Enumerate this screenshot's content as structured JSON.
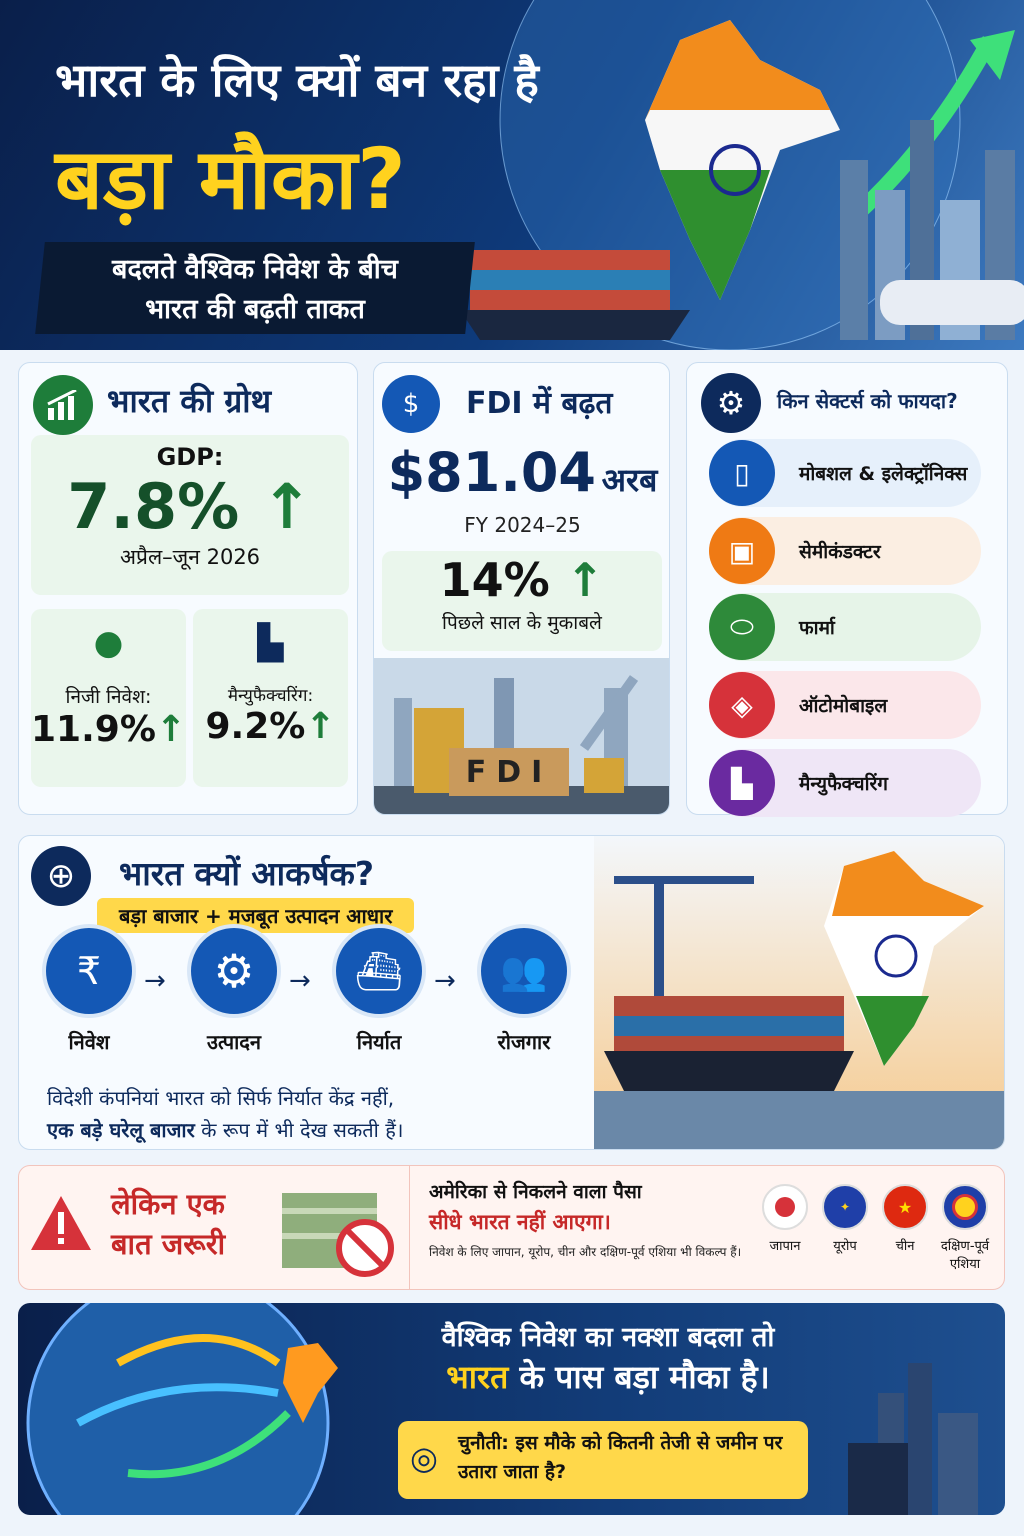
{
  "header": {
    "title_line1": "भारत के लिए क्यों बन रहा है",
    "title_line2": "बड़ा मौका?",
    "subtitle_line1": "बदलते वैश्विक निवेश के बीच",
    "subtitle_line2": "भारत की बढ़ती ताकत"
  },
  "growth": {
    "title": "भारत की ग्रोथ",
    "gdp_label": "GDP:",
    "gdp_value": "7.8%",
    "gdp_period": "अप्रैल–जून 2026",
    "private_label": "निजी निवेश:",
    "private_value": "11.9%",
    "mfg_label": "मैन्युफैक्चरिंग:",
    "mfg_value": "9.2%"
  },
  "fdi": {
    "title": "FDI में बढ़त",
    "amount": "$81.04",
    "unit": "अरब",
    "period": "FY 2024–25",
    "growth": "14%",
    "growth_note": "पिछले साल के मुकाबले",
    "image_text": "FDI"
  },
  "sectors": {
    "title": "किन सेक्टर्स को फायदा?",
    "items": [
      "मोबशल & इलेक्ट्रॉनिक्स",
      "सेमीकंडक्टर",
      "फार्मा",
      "ऑटोमोबाइल",
      "मैन्युफैक्चरिंग"
    ]
  },
  "attractive": {
    "title": "भारत क्यों आकर्षक?",
    "tagline": "बड़ा बाजार + मजबूत उत्पादन आधार",
    "flow": [
      "निवेश",
      "उत्पादन",
      "निर्यात",
      "रोजगार"
    ],
    "note_line1": "विदेशी कंपनियां भारत को सिर्फ निर्यात केंद्र नहीं,",
    "note_bold": "एक बड़े घरेलू बाजार",
    "note_rest": "के रूप में भी देख सकती हैं।"
  },
  "caution": {
    "title": "लेकिन एक बात जरूरी",
    "headline": "अमेरिका से निकलने वाला पैसा",
    "headline_red": "सीधे भारत नहीं आएगा।",
    "note": "निवेश के लिए जापान, यूरोप, चीन और दक्षिण-पूर्व एशिया भी विकल्प हैं।",
    "regions": [
      "जापान",
      "यूरोप",
      "चीन",
      "दक्षिण-पूर्व एशिया"
    ]
  },
  "conclusion": {
    "line1": "वैश्विक निवेश का नक्शा बदला तो",
    "line2_accent": "भारत",
    "line2_rest": "के पास बड़ा मौका है।",
    "challenge": "चुनौती: इस मौके को कितनी तेजी से जमीन पर उतारा जाता है?"
  }
}
